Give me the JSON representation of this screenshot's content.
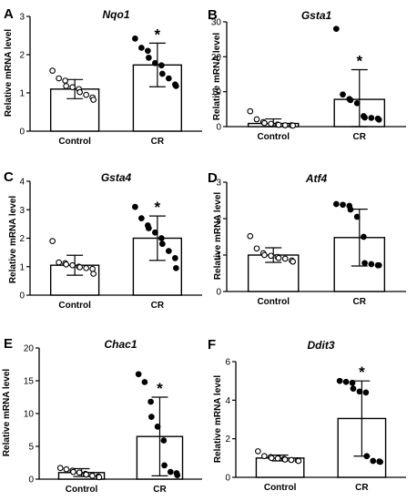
{
  "chart_data": [
    {
      "panel": "A",
      "type": "bar",
      "title": "Nqo1",
      "ylabel": "Relative mRNA level",
      "categories": [
        "Control",
        "CR"
      ],
      "ylim": [
        0,
        3
      ],
      "yticks": [
        "0",
        "1",
        "2",
        "3"
      ],
      "values": [
        1.1,
        1.73
      ],
      "error": [
        0.25,
        0.57
      ],
      "significance": [
        "",
        "*"
      ],
      "points": [
        [
          1.58,
          1.38,
          1.32,
          1.18,
          1.15,
          1.1,
          1.02,
          0.95,
          0.88,
          0.82
        ],
        [
          2.42,
          2.18,
          2.1,
          1.92,
          1.78,
          1.72,
          1.5,
          1.38,
          1.22,
          1.18
        ]
      ]
    },
    {
      "panel": "B",
      "type": "bar",
      "title": "Gsta1",
      "ylabel": "Relative mRNA level",
      "categories": [
        "Control",
        "CR"
      ],
      "ylim": [
        0,
        30
      ],
      "yticks": [
        "0",
        "10",
        "20",
        "30"
      ],
      "values": [
        0.9,
        7.8
      ],
      "error": [
        1.3,
        8.5
      ],
      "significance": [
        "",
        "*"
      ],
      "points": [
        [
          4.4,
          2.1,
          1.3,
          1.0,
          0.8,
          0.6,
          0.5,
          0.4,
          0.4,
          0.3
        ],
        [
          28.0,
          9.2,
          7.9,
          7.6,
          6.7,
          3.0,
          2.6,
          2.5,
          2.3,
          2.0
        ]
      ]
    },
    {
      "panel": "C",
      "type": "bar",
      "title": "Gsta4",
      "ylabel": "Relative mRNA level",
      "categories": [
        "Control",
        "CR"
      ],
      "ylim": [
        0,
        4
      ],
      "yticks": [
        "0",
        "1",
        "2",
        "3",
        "4"
      ],
      "values": [
        1.05,
        2.0
      ],
      "error": [
        0.35,
        0.78
      ],
      "significance": [
        "",
        "*"
      ],
      "points": [
        [
          1.9,
          1.15,
          1.12,
          1.08,
          1.05,
          1.0,
          0.98,
          0.95,
          0.92,
          0.75
        ],
        [
          3.1,
          2.7,
          2.45,
          2.35,
          2.2,
          2.0,
          1.8,
          1.55,
          1.3,
          0.95
        ]
      ]
    },
    {
      "panel": "D",
      "type": "bar",
      "title": "Atf4",
      "ylabel": "Relative mRNA level",
      "categories": [
        "Control",
        "CR"
      ],
      "ylim": [
        0,
        3
      ],
      "yticks": [
        "0",
        "1",
        "2",
        "3"
      ],
      "values": [
        1.0,
        1.48
      ],
      "error": [
        0.2,
        0.78
      ],
      "significance": [
        "",
        ""
      ],
      "points": [
        [
          1.52,
          1.18,
          1.05,
          1.0,
          0.98,
          0.95,
          0.92,
          0.9,
          0.85,
          0.82
        ],
        [
          2.4,
          2.38,
          2.35,
          2.25,
          2.05,
          1.5,
          0.78,
          0.75,
          0.72,
          0.72
        ]
      ]
    },
    {
      "panel": "E",
      "type": "bar",
      "title": "Chac1",
      "ylabel": "Relative mRNA level",
      "categories": [
        "Control",
        "CR"
      ],
      "ylim": [
        0,
        20
      ],
      "yticks": [
        "0",
        "5",
        "10",
        "15",
        "20"
      ],
      "values": [
        1.0,
        6.5
      ],
      "error": [
        0.6,
        6.0
      ],
      "significance": [
        "",
        "*"
      ],
      "points": [
        [
          1.7,
          1.5,
          1.3,
          1.1,
          1.0,
          0.8,
          0.7,
          0.5,
          0.4,
          0.3
        ],
        [
          16.0,
          14.8,
          11.8,
          9.5,
          8.0,
          5.9,
          2.1,
          1.1,
          0.9,
          0.6
        ]
      ]
    },
    {
      "panel": "F",
      "type": "bar",
      "title": "Ddit3",
      "ylabel": "Relative mRNA level",
      "categories": [
        "Control",
        "CR"
      ],
      "ylim": [
        0,
        6
      ],
      "yticks": [
        "0",
        "2",
        "4",
        "6"
      ],
      "values": [
        1.0,
        3.05
      ],
      "error": [
        0.15,
        1.95
      ],
      "significance": [
        "",
        "*"
      ],
      "points": [
        [
          1.35,
          1.1,
          1.05,
          1.0,
          0.98,
          0.95,
          0.92,
          0.9,
          0.88,
          0.85
        ],
        [
          5.0,
          4.95,
          4.9,
          4.6,
          4.45,
          4.4,
          1.1,
          0.85,
          0.82,
          0.8
        ]
      ]
    }
  ]
}
